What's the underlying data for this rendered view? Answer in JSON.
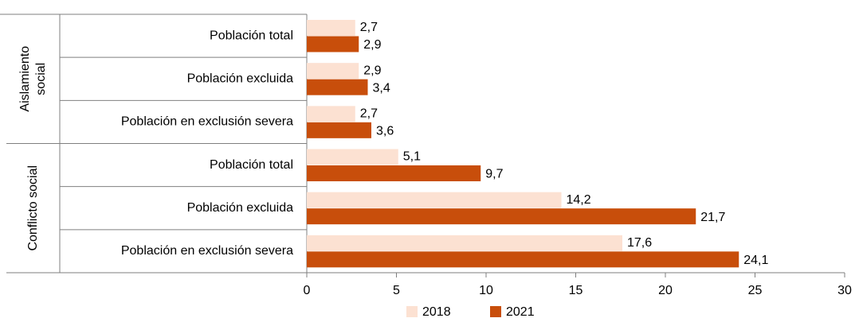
{
  "chart_data": {
    "type": "grouped-hbar",
    "groups": [
      {
        "label": [
          "Aislamiento",
          "social"
        ],
        "categories": [
          "Población total",
          "Población excluida",
          "Población en exclusión severa"
        ]
      },
      {
        "label": [
          "Conflicto social"
        ],
        "categories": [
          "Población total",
          "Población excluida",
          "Población en exclusión severa"
        ]
      }
    ],
    "series": [
      {
        "name": "2018",
        "color": "#fce1d2",
        "values": [
          [
            2.7,
            2.9,
            2.7
          ],
          [
            5.1,
            14.2,
            17.6
          ]
        ],
        "value_labels": [
          [
            "2,7",
            "2,9",
            "2,7"
          ],
          [
            "5,1",
            "14,2",
            "17,6"
          ]
        ]
      },
      {
        "name": "2021",
        "color": "#c84e0b",
        "values": [
          [
            2.9,
            3.4,
            3.6
          ],
          [
            9.7,
            21.7,
            24.1
          ]
        ],
        "value_labels": [
          [
            "2,9",
            "3,4",
            "3,6"
          ],
          [
            "9,7",
            "21,7",
            "24,1"
          ]
        ]
      }
    ],
    "xlim": [
      0,
      30
    ],
    "xticks": [
      0,
      5,
      10,
      15,
      20,
      25,
      30
    ],
    "legend": "bottom"
  }
}
